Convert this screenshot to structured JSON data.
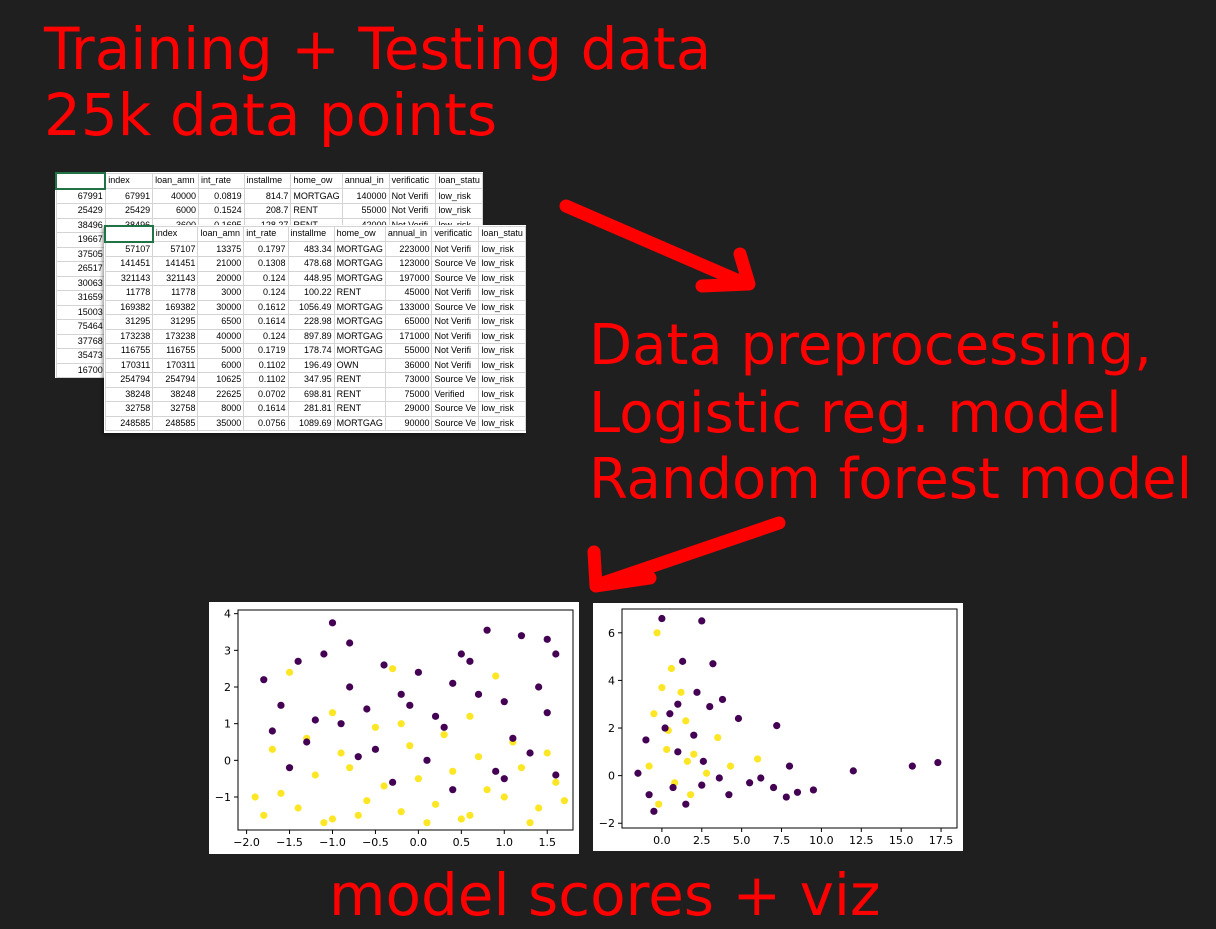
{
  "title": {
    "line1": "Training + Testing data",
    "line2": "25k data points"
  },
  "steps": {
    "line1": "Data preprocessing,",
    "line2": "Logistic reg. model",
    "line3": "Random forest model"
  },
  "final_label": "model scores + viz",
  "colors": {
    "text": "#ff0000",
    "background": "#1f1f1f",
    "class_a": "#440154",
    "class_b": "#fde725"
  },
  "sheet_back": {
    "headers": [
      "",
      "index",
      "loan_amn",
      "int_rate",
      "installme",
      "home_ow",
      "annual_in",
      "verificatic",
      "loan_statu"
    ],
    "rows": [
      [
        "67991",
        "67991",
        "40000",
        "0.0819",
        "814.7",
        "MORTGAG",
        "140000",
        "Not Verifi",
        "low_risk"
      ],
      [
        "25429",
        "25429",
        "6000",
        "0.1524",
        "208.7",
        "RENT",
        "55000",
        "Not Verifi",
        "low_risk"
      ],
      [
        "38496",
        "38496",
        "3600",
        "0.1695",
        "128.27",
        "RENT",
        "42000",
        "Not Verifi",
        "low_risk"
      ],
      [
        "19667",
        "",
        "",
        "",
        "",
        "",
        "",
        "",
        ""
      ],
      [
        "37505",
        "",
        "",
        "",
        "",
        "",
        "",
        "",
        ""
      ],
      [
        "26517",
        "",
        "",
        "",
        "",
        "",
        "",
        "",
        ""
      ],
      [
        "30063",
        "",
        "",
        "",
        "",
        "",
        "",
        "",
        ""
      ],
      [
        "31659",
        "",
        "",
        "",
        "",
        "",
        "",
        "",
        ""
      ],
      [
        "15003",
        "",
        "",
        "",
        "",
        "",
        "",
        "",
        ""
      ],
      [
        "75464",
        "",
        "",
        "",
        "",
        "",
        "",
        "",
        ""
      ],
      [
        "37768",
        "",
        "",
        "",
        "",
        "",
        "",
        "",
        ""
      ],
      [
        "35473",
        "",
        "",
        "",
        "",
        "",
        "",
        "",
        ""
      ],
      [
        "16700",
        "",
        "",
        "",
        "",
        "",
        "",
        "",
        ""
      ]
    ]
  },
  "sheet_front": {
    "headers": [
      "",
      "index",
      "loan_amn",
      "int_rate",
      "installme",
      "home_ow",
      "annual_in",
      "verificatic",
      "loan_statu"
    ],
    "rows": [
      [
        "57107",
        "57107",
        "13375",
        "0.1797",
        "483.34",
        "MORTGAG",
        "223000",
        "Not Verifi",
        "low_risk"
      ],
      [
        "141451",
        "141451",
        "21000",
        "0.1308",
        "478.68",
        "MORTGAG",
        "123000",
        "Source Ve",
        "low_risk"
      ],
      [
        "321143",
        "321143",
        "20000",
        "0.124",
        "448.95",
        "MORTGAG",
        "197000",
        "Source Ve",
        "low_risk"
      ],
      [
        "11778",
        "11778",
        "3000",
        "0.124",
        "100.22",
        "RENT",
        "45000",
        "Not Verifi",
        "low_risk"
      ],
      [
        "169382",
        "169382",
        "30000",
        "0.1612",
        "1056.49",
        "MORTGAG",
        "133000",
        "Source Ve",
        "low_risk"
      ],
      [
        "31295",
        "31295",
        "6500",
        "0.1614",
        "228.98",
        "MORTGAG",
        "65000",
        "Not Verifi",
        "low_risk"
      ],
      [
        "173238",
        "173238",
        "40000",
        "0.124",
        "897.89",
        "MORTGAG",
        "171000",
        "Not Verifi",
        "low_risk"
      ],
      [
        "116755",
        "116755",
        "5000",
        "0.1719",
        "178.74",
        "MORTGAG",
        "55000",
        "Not Verifi",
        "low_risk"
      ],
      [
        "170311",
        "170311",
        "6000",
        "0.1102",
        "196.49",
        "OWN",
        "36000",
        "Not Verifi",
        "low_risk"
      ],
      [
        "254794",
        "254794",
        "10625",
        "0.1102",
        "347.95",
        "RENT",
        "73000",
        "Source Ve",
        "low_risk"
      ],
      [
        "38248",
        "38248",
        "22625",
        "0.0702",
        "698.81",
        "RENT",
        "75000",
        "Verified",
        "low_risk"
      ],
      [
        "32758",
        "32758",
        "8000",
        "0.1614",
        "281.81",
        "RENT",
        "29000",
        "Source Ve",
        "low_risk"
      ],
      [
        "248585",
        "248585",
        "35000",
        "0.0756",
        "1089.69",
        "MORTGAG",
        "90000",
        "Source Ve",
        "low_risk"
      ]
    ]
  },
  "chart_data": [
    {
      "type": "scatter",
      "title": "",
      "xlabel": "",
      "ylabel": "",
      "xlim": [
        -2.1,
        1.8
      ],
      "ylim": [
        -1.9,
        4.1
      ],
      "xticks": [
        "−2.0",
        "−1.5",
        "−1.0",
        "−0.5",
        "0.0",
        "0.5",
        "1.0",
        "1.5"
      ],
      "xtick_values": [
        -2.0,
        -1.5,
        -1.0,
        -0.5,
        0.0,
        0.5,
        1.0,
        1.5
      ],
      "yticks": [
        "4",
        "3",
        "2",
        "1",
        "0",
        "−1"
      ],
      "ytick_values": [
        4,
        3,
        2,
        1,
        0,
        -1
      ],
      "grid": false,
      "series": [
        {
          "color": "#fde725",
          "points": [
            [
              -1.8,
              -1.5
            ],
            [
              -1.6,
              -0.9
            ],
            [
              -1.4,
              -1.3
            ],
            [
              -1.2,
              -0.4
            ],
            [
              -1.0,
              -1.6
            ],
            [
              -0.8,
              -0.2
            ],
            [
              -0.6,
              -1.1
            ],
            [
              -0.4,
              -0.7
            ],
            [
              -0.2,
              -1.4
            ],
            [
              0.0,
              -0.5
            ],
            [
              0.2,
              -1.2
            ],
            [
              0.4,
              -0.3
            ],
            [
              0.6,
              -1.5
            ],
            [
              0.8,
              -0.8
            ],
            [
              1.0,
              -1.0
            ],
            [
              1.2,
              -0.2
            ],
            [
              1.4,
              -1.3
            ],
            [
              1.6,
              -0.6
            ],
            [
              -1.7,
              0.3
            ],
            [
              -1.3,
              0.6
            ],
            [
              -0.9,
              0.2
            ],
            [
              -0.5,
              0.9
            ],
            [
              -0.1,
              0.4
            ],
            [
              0.3,
              0.7
            ],
            [
              0.7,
              0.1
            ],
            [
              1.1,
              0.5
            ],
            [
              1.5,
              0.2
            ],
            [
              -1.5,
              2.4
            ],
            [
              -0.3,
              2.5
            ],
            [
              0.9,
              2.3
            ],
            [
              -1.1,
              -1.7
            ],
            [
              0.5,
              -1.6
            ],
            [
              1.3,
              -1.7
            ],
            [
              -0.7,
              -1.5
            ],
            [
              0.1,
              -1.7
            ],
            [
              -1.9,
              -1.0
            ],
            [
              1.7,
              -1.1
            ],
            [
              -1.0,
              1.3
            ],
            [
              0.6,
              1.2
            ],
            [
              -0.2,
              1.0
            ]
          ]
        },
        {
          "color": "#440154",
          "points": [
            [
              -1.8,
              2.2
            ],
            [
              -1.6,
              1.5
            ],
            [
              -1.4,
              2.7
            ],
            [
              -1.2,
              1.1
            ],
            [
              -1.0,
              3.75
            ],
            [
              -0.8,
              2.0
            ],
            [
              -0.6,
              1.4
            ],
            [
              -0.4,
              2.6
            ],
            [
              -0.2,
              1.8
            ],
            [
              0.0,
              2.4
            ],
            [
              0.2,
              1.2
            ],
            [
              0.4,
              2.1
            ],
            [
              0.6,
              2.7
            ],
            [
              0.8,
              3.55
            ],
            [
              1.0,
              1.6
            ],
            [
              1.2,
              3.4
            ],
            [
              1.4,
              2.0
            ],
            [
              1.6,
              2.9
            ],
            [
              -1.7,
              0.8
            ],
            [
              -1.3,
              0.5
            ],
            [
              -0.9,
              1.0
            ],
            [
              -0.5,
              0.3
            ],
            [
              -0.1,
              1.5
            ],
            [
              0.3,
              0.9
            ],
            [
              0.7,
              1.8
            ],
            [
              1.1,
              0.6
            ],
            [
              1.5,
              1.3
            ],
            [
              -1.5,
              -0.2
            ],
            [
              -0.7,
              0.1
            ],
            [
              0.1,
              0.0
            ],
            [
              0.9,
              -0.3
            ],
            [
              1.3,
              0.2
            ],
            [
              -0.8,
              3.2
            ],
            [
              1.5,
              3.3
            ],
            [
              0.5,
              2.9
            ],
            [
              -1.1,
              2.9
            ],
            [
              -0.3,
              -0.6
            ],
            [
              1.0,
              -0.5
            ],
            [
              1.6,
              -0.4
            ],
            [
              0.4,
              -0.8
            ]
          ]
        }
      ]
    },
    {
      "type": "scatter",
      "title": "",
      "xlabel": "",
      "ylabel": "",
      "xlim": [
        -2.5,
        18.5
      ],
      "ylim": [
        -2.2,
        7.0
      ],
      "xticks": [
        "0.0",
        "2.5",
        "5.0",
        "7.5",
        "10.0",
        "12.5",
        "15.0",
        "17.5"
      ],
      "xtick_values": [
        0.0,
        2.5,
        5.0,
        7.5,
        10.0,
        12.5,
        15.0,
        17.5
      ],
      "yticks": [
        "6",
        "4",
        "2",
        "0",
        "−2"
      ],
      "ytick_values": [
        6,
        4,
        2,
        0,
        -2
      ],
      "grid": false,
      "series": [
        {
          "color": "#fde725",
          "points": [
            [
              -0.3,
              6.0
            ],
            [
              0.6,
              4.5
            ],
            [
              0.0,
              3.7
            ],
            [
              1.2,
              3.5
            ],
            [
              1.5,
              2.3
            ],
            [
              -0.5,
              2.6
            ],
            [
              0.4,
              1.9
            ],
            [
              2.0,
              0.9
            ],
            [
              -0.8,
              0.4
            ],
            [
              0.8,
              -0.3
            ],
            [
              1.8,
              -0.8
            ],
            [
              2.8,
              0.1
            ],
            [
              3.5,
              1.6
            ],
            [
              4.3,
              0.4
            ],
            [
              6.0,
              0.7
            ],
            [
              -0.2,
              -1.2
            ],
            [
              0.3,
              1.1
            ],
            [
              1.6,
              0.6
            ]
          ]
        },
        {
          "color": "#440154",
          "points": [
            [
              0.0,
              6.6
            ],
            [
              1.3,
              4.8
            ],
            [
              2.5,
              6.5
            ],
            [
              3.2,
              4.7
            ],
            [
              2.2,
              3.5
            ],
            [
              3.0,
              2.9
            ],
            [
              -1.0,
              1.5
            ],
            [
              0.5,
              2.6
            ],
            [
              1.0,
              1.0
            ],
            [
              -1.5,
              0.1
            ],
            [
              0.7,
              -0.5
            ],
            [
              1.5,
              -1.2
            ],
            [
              2.5,
              -0.4
            ],
            [
              3.6,
              -0.1
            ],
            [
              4.2,
              -0.8
            ],
            [
              4.8,
              2.4
            ],
            [
              5.5,
              -0.3
            ],
            [
              6.2,
              -0.1
            ],
            [
              7.0,
              -0.5
            ],
            [
              7.8,
              -0.9
            ],
            [
              7.2,
              2.1
            ],
            [
              8.0,
              0.4
            ],
            [
              8.5,
              -0.7
            ],
            [
              9.5,
              -0.6
            ],
            [
              12.0,
              0.2
            ],
            [
              15.7,
              0.4
            ],
            [
              17.3,
              0.55
            ],
            [
              -0.5,
              -1.5
            ],
            [
              0.2,
              2.0
            ],
            [
              2.0,
              1.7
            ],
            [
              2.6,
              0.6
            ],
            [
              -0.8,
              -0.8
            ],
            [
              1.0,
              3.0
            ],
            [
              3.8,
              3.2
            ]
          ]
        }
      ]
    }
  ]
}
